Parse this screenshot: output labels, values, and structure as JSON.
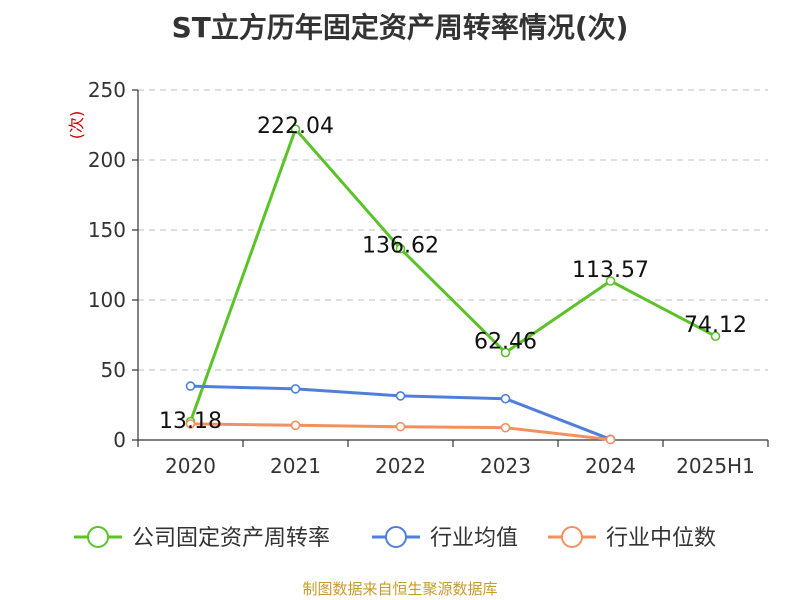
{
  "chart_data": {
    "type": "line",
    "title": "ST立方历年固定资产周转率情况(次)",
    "ylabel": "(次)",
    "categories": [
      "2020",
      "2021",
      "2022",
      "2023",
      "2024",
      "2025H1"
    ],
    "ylim": [
      0,
      250
    ],
    "yticks": [
      0,
      50,
      100,
      150,
      200,
      250
    ],
    "grid": true,
    "legend_position": "bottom",
    "series": [
      {
        "name": "公司固定资产周转率",
        "color": "#5cc22a",
        "values": [
          13.18,
          222.04,
          136.62,
          62.46,
          113.57,
          74.12
        ],
        "labels": [
          "13.18",
          "222.04",
          "136.62",
          "62.46",
          "113.57",
          "74.12"
        ]
      },
      {
        "name": "行业均值",
        "color": "#4f7fdb",
        "values": [
          38.5,
          36.5,
          31.5,
          29.5,
          0.5,
          null
        ]
      },
      {
        "name": "行业中位数",
        "color": "#f49060",
        "values": [
          11.5,
          10.5,
          9.5,
          8.8,
          0.3,
          null
        ]
      }
    ]
  },
  "source": "制图数据来自恒生聚源数据库"
}
